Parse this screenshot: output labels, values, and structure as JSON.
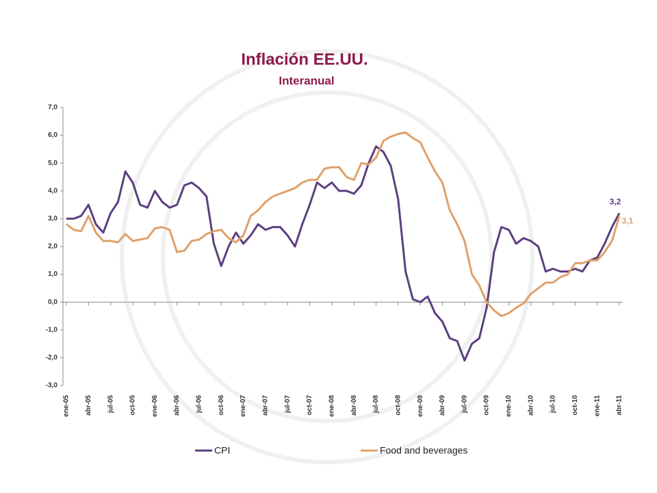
{
  "chart_data": {
    "type": "line",
    "title": "Inflación EE.UU.",
    "subtitle": "Interanual",
    "categories": [
      "ene-05",
      null,
      null,
      "abr-05",
      null,
      null,
      "jul-05",
      null,
      null,
      "oct-05",
      null,
      null,
      "ene-06",
      null,
      null,
      "abr-06",
      null,
      null,
      "jul-06",
      null,
      null,
      "oct-06",
      null,
      null,
      "ene-07",
      null,
      null,
      "abr-07",
      null,
      null,
      "jul-07",
      null,
      null,
      "oct-07",
      null,
      null,
      "ene-08",
      null,
      null,
      "abr-08",
      null,
      null,
      "jul-08",
      null,
      null,
      "oct-08",
      null,
      null,
      "ene-09",
      null,
      null,
      "abr-09",
      null,
      null,
      "jul-09",
      null,
      null,
      "oct-09",
      null,
      null,
      "ene-10",
      null,
      null,
      "abr-10",
      null,
      null,
      "jul-10",
      null,
      null,
      "oct-10",
      null,
      null,
      "ene-11",
      null,
      null,
      "abr-11"
    ],
    "series": [
      {
        "name": "CPI",
        "color": "#5b3f7f",
        "values": [
          3.0,
          3.0,
          3.1,
          3.5,
          2.8,
          2.5,
          3.2,
          3.6,
          4.7,
          4.3,
          3.5,
          3.4,
          4.0,
          3.6,
          3.4,
          3.5,
          4.2,
          4.3,
          4.1,
          3.8,
          2.1,
          1.3,
          2.0,
          2.5,
          2.1,
          2.4,
          2.8,
          2.6,
          2.7,
          2.7,
          2.4,
          2.0,
          2.8,
          3.5,
          4.3,
          4.1,
          4.3,
          4.0,
          4.0,
          3.9,
          4.2,
          5.0,
          5.6,
          5.4,
          4.9,
          3.7,
          1.1,
          0.1,
          0.0,
          0.2,
          -0.4,
          -0.7,
          -1.3,
          -1.4,
          -2.1,
          -1.5,
          -1.3,
          -0.2,
          1.8,
          2.7,
          2.6,
          2.1,
          2.3,
          2.2,
          2.0,
          1.1,
          1.2,
          1.1,
          1.1,
          1.2,
          1.1,
          1.5,
          1.6,
          2.1,
          2.7,
          3.2
        ],
        "value_labels": [
          null,
          null,
          null,
          null,
          null,
          null,
          null,
          null,
          null,
          null,
          null,
          null,
          null,
          null,
          null,
          null,
          null,
          null,
          null,
          null,
          null,
          null,
          null,
          null,
          null,
          null,
          null,
          null,
          null,
          null,
          null,
          null,
          null,
          null,
          null,
          null,
          null,
          null,
          null,
          null,
          null,
          null,
          null,
          null,
          null,
          null,
          null,
          null,
          null,
          null,
          null,
          null,
          null,
          null,
          null,
          null,
          null,
          null,
          null,
          null,
          null,
          null,
          null,
          null,
          null,
          null,
          null,
          null,
          null,
          null,
          null,
          null,
          null,
          null,
          null,
          "3,2"
        ]
      },
      {
        "name": "Food and beverages",
        "color": "#e0a06a",
        "values": [
          2.8,
          2.6,
          2.55,
          3.1,
          2.5,
          2.2,
          2.2,
          2.15,
          2.45,
          2.2,
          2.25,
          2.3,
          2.65,
          2.7,
          2.6,
          1.8,
          1.85,
          2.2,
          2.25,
          2.45,
          2.55,
          2.6,
          2.3,
          2.15,
          2.4,
          3.1,
          3.3,
          3.6,
          3.8,
          3.9,
          4.0,
          4.1,
          4.3,
          4.4,
          4.4,
          4.8,
          4.85,
          4.85,
          4.5,
          4.4,
          5.0,
          4.95,
          5.2,
          5.8,
          5.95,
          6.05,
          6.1,
          5.9,
          5.75,
          5.2,
          4.7,
          4.3,
          3.3,
          2.8,
          2.2,
          1.0,
          0.6,
          0.0,
          -0.3,
          -0.5,
          -0.4,
          -0.2,
          -0.05,
          0.3,
          0.5,
          0.7,
          0.7,
          0.9,
          1.0,
          1.4,
          1.4,
          1.5,
          1.5,
          1.8,
          2.2,
          3.1
        ],
        "value_labels": [
          null,
          null,
          null,
          null,
          null,
          null,
          null,
          null,
          null,
          null,
          null,
          null,
          null,
          null,
          null,
          null,
          null,
          null,
          null,
          null,
          null,
          null,
          null,
          null,
          null,
          null,
          null,
          null,
          null,
          null,
          null,
          null,
          null,
          null,
          null,
          null,
          null,
          null,
          null,
          null,
          null,
          null,
          null,
          null,
          null,
          null,
          null,
          null,
          null,
          null,
          null,
          null,
          null,
          null,
          null,
          null,
          null,
          null,
          null,
          null,
          null,
          null,
          null,
          null,
          null,
          null,
          null,
          null,
          null,
          null,
          null,
          null,
          null,
          null,
          null,
          "3,1"
        ]
      }
    ],
    "ylim": [
      -3,
      7
    ],
    "yticks": [
      {
        "value": -3,
        "label": "-3,0"
      },
      {
        "value": -2,
        "label": "-2,0"
      },
      {
        "value": -1,
        "label": "-1,0"
      },
      {
        "value": 0,
        "label": "0,0"
      },
      {
        "value": 1,
        "label": "1,0"
      },
      {
        "value": 2,
        "label": "2,0"
      },
      {
        "value": 3,
        "label": "3,0"
      },
      {
        "value": 4,
        "label": "4,0"
      },
      {
        "value": 5,
        "label": "5,0"
      },
      {
        "value": 6,
        "label": "6,0"
      },
      {
        "value": 7,
        "label": "7,0"
      }
    ],
    "grid": false,
    "legend": "bottom"
  }
}
